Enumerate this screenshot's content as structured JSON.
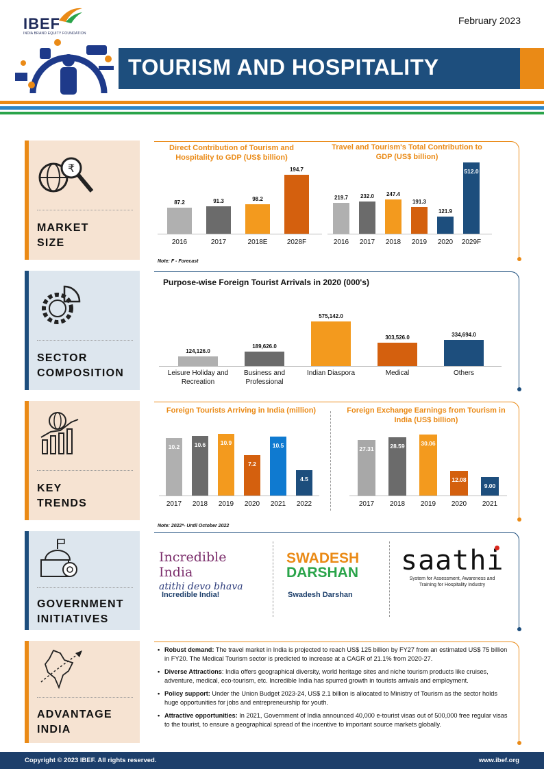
{
  "header": {
    "logo_text": "IBEF",
    "logo_sub": "INDIA BRAND EQUITY FOUNDATION",
    "date": "February 2023",
    "title": "TOURISM AND HOSPITALITY"
  },
  "colors": {
    "navy": "#1d4e7d",
    "orange": "#ea8a16",
    "green": "#2aa44a",
    "blue_stripe": "#2c86c8",
    "panel_orange": "#f6e3d2",
    "panel_blue": "#dde6ee"
  },
  "sections": {
    "market": {
      "label1": "MARKET",
      "label2": "SIZE",
      "icon": "globe-magnifier-rupee-icon"
    },
    "sector": {
      "label1": "SECTOR",
      "label2": "COMPOSITION",
      "icon": "gear-pie-chart-icon"
    },
    "trends": {
      "label1": "KEY",
      "label2": "TRENDS",
      "icon": "globe-growth-chart-icon"
    },
    "gov": {
      "label1": "GOVERNMENT",
      "label2": "INITIATIVES",
      "icon": "government-building-gear-icon"
    },
    "adv": {
      "label1": "ADVANTAGE",
      "label2": "INDIA",
      "icon": "india-map-airplane-icon"
    }
  },
  "chart_data": [
    {
      "type": "bar",
      "title": "Direct Contribution of Tourism and Hospitality to GDP (US$ billion)",
      "categories": [
        "2016",
        "2017",
        "2018E",
        "2028F"
      ],
      "values": [
        87.2,
        91.3,
        98.2,
        194.7
      ],
      "value_labels": [
        "87.2",
        "91.3",
        "98.2",
        "194.7"
      ],
      "ylim": [
        0,
        200
      ]
    },
    {
      "type": "bar",
      "title": "Travel and Tourism's Total Contribution to GDP (US$ billion)",
      "categories": [
        "2016",
        "2017",
        "2018",
        "2019",
        "2020",
        "2029F"
      ],
      "values": [
        219.7,
        232.0,
        247.4,
        191.3,
        121.9,
        512.0
      ],
      "value_labels": [
        "219.7",
        "232.0",
        "247.4",
        "191.3",
        "121.9",
        "512.0"
      ],
      "ylim": [
        0,
        530
      ]
    },
    {
      "type": "bar",
      "title": "Purpose-wise Foreign Tourist Arrivals in 2020 (000's)",
      "categories": [
        "Leisure Holiday and Recreation",
        "Business and Professional",
        "Indian Diaspora",
        "Medical",
        "Others"
      ],
      "values": [
        124126.0,
        189626.0,
        575142.0,
        303526.0,
        334694.0
      ],
      "value_labels": [
        "124,126.0",
        "189,626.0",
        "575,142.0",
        "303,526.0",
        "334,694.0"
      ],
      "ylim": [
        0,
        600000
      ]
    },
    {
      "type": "bar",
      "title": "Foreign Tourists Arriving in India (million)",
      "categories": [
        "2017",
        "2018",
        "2019",
        "2020",
        "2021",
        "2022"
      ],
      "values": [
        10.2,
        10.6,
        10.9,
        7.2,
        10.5,
        4.5
      ],
      "value_labels": [
        "10.2",
        "10.6",
        "10.9",
        "7.2",
        "10.5",
        "4.5"
      ],
      "ylim": [
        0,
        11.2
      ]
    },
    {
      "type": "bar",
      "title": "Foreign Exchange Earnings from Tourism in India (US$ billion)",
      "categories": [
        "2017",
        "2018",
        "2019",
        "2020",
        "2021"
      ],
      "values": [
        27.31,
        28.59,
        30.06,
        12.08,
        9.0
      ],
      "value_labels": [
        "27.31",
        "28.59",
        "30.06",
        "12.08",
        "9.00"
      ],
      "ylim": [
        0,
        31
      ]
    }
  ],
  "notes": {
    "market": "Note: F - Forecast",
    "trends": "Note: 2022*- Until October 2022"
  },
  "initiatives": [
    {
      "logo_line1": "Incredible India",
      "logo_line2": "atithi devo bhava",
      "caption": "Incredible India!"
    },
    {
      "logo_line1": "SWADESH",
      "logo_line2": "DARSHAN",
      "caption": "Swadesh Darshan"
    },
    {
      "logo_line1": "saathi",
      "logo_line2": "System for Assessment, Awareness and Training for Hospitality Industry",
      "caption": ""
    }
  ],
  "advantages": [
    {
      "bold": "Robust demand:",
      "text": " The travel market in India is projected to reach US$ 125 billion by FY27 from an estimated US$ 75 billion in FY20. The Medical Tourism sector is predicted to increase at a CAGR of 21.1% from 2020-27."
    },
    {
      "bold": "Diverse Attractions",
      "text": ": India offers geographical diversity, world heritage sites and niche tourism products like cruises, adventure, medical, eco-tourism, etc. Incredible India has spurred growth in tourists arrivals and employment."
    },
    {
      "bold": "Policy support:",
      "text": " Under the Union Budget 2023-24, US$ 2.1 billion is allocated to Ministry of Tourism as the sector holds huge opportunities for jobs and entrepreneurship for youth."
    },
    {
      "bold": "Attractive opportunities:",
      "text": " In 2021, Government of India announced 40,000 e-tourist visas out of 500,000 free regular visas to the tourist, to ensure a geographical spread of the incentive to important source markets globally."
    }
  ],
  "footer": {
    "copyright": "Copyright © 2023 IBEF. All rights reserved.",
    "website": "www.ibef.org"
  }
}
